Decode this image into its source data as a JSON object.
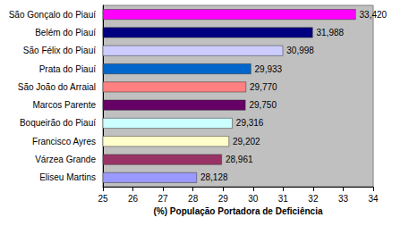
{
  "chart_data": {
    "type": "bar",
    "orientation": "horizontal",
    "x_label": "(%) População Portadora de Deficiência",
    "categories": [
      "São Gonçalo do Piauí",
      "Belém do Piauí",
      "São Félix do Piauí",
      "Prata do Piauí",
      "São João do Arraial",
      "Marcos Parente",
      "Boqueirão do Piauí",
      "Francisco Ayres",
      "Várzea Grande",
      "Eliseu Martins"
    ],
    "values": [
      33.42,
      31.988,
      30.998,
      29.933,
      29.77,
      29.75,
      29.316,
      29.202,
      28.961,
      28.128
    ],
    "value_labels": [
      "33,420",
      "31,988",
      "30,998",
      "29,933",
      "29,770",
      "29,750",
      "29,316",
      "29,202",
      "28,961",
      "28,128"
    ],
    "colors": [
      "#ff00ff",
      "#000080",
      "#ccccff",
      "#0066cc",
      "#ff8080",
      "#660066",
      "#ccffff",
      "#ffffcc",
      "#993366",
      "#9999ff"
    ],
    "xlim": [
      25,
      34
    ],
    "xticks": [
      25,
      26,
      27,
      28,
      29,
      30,
      31,
      32,
      33,
      34
    ],
    "grid": false,
    "data_labels": true
  }
}
